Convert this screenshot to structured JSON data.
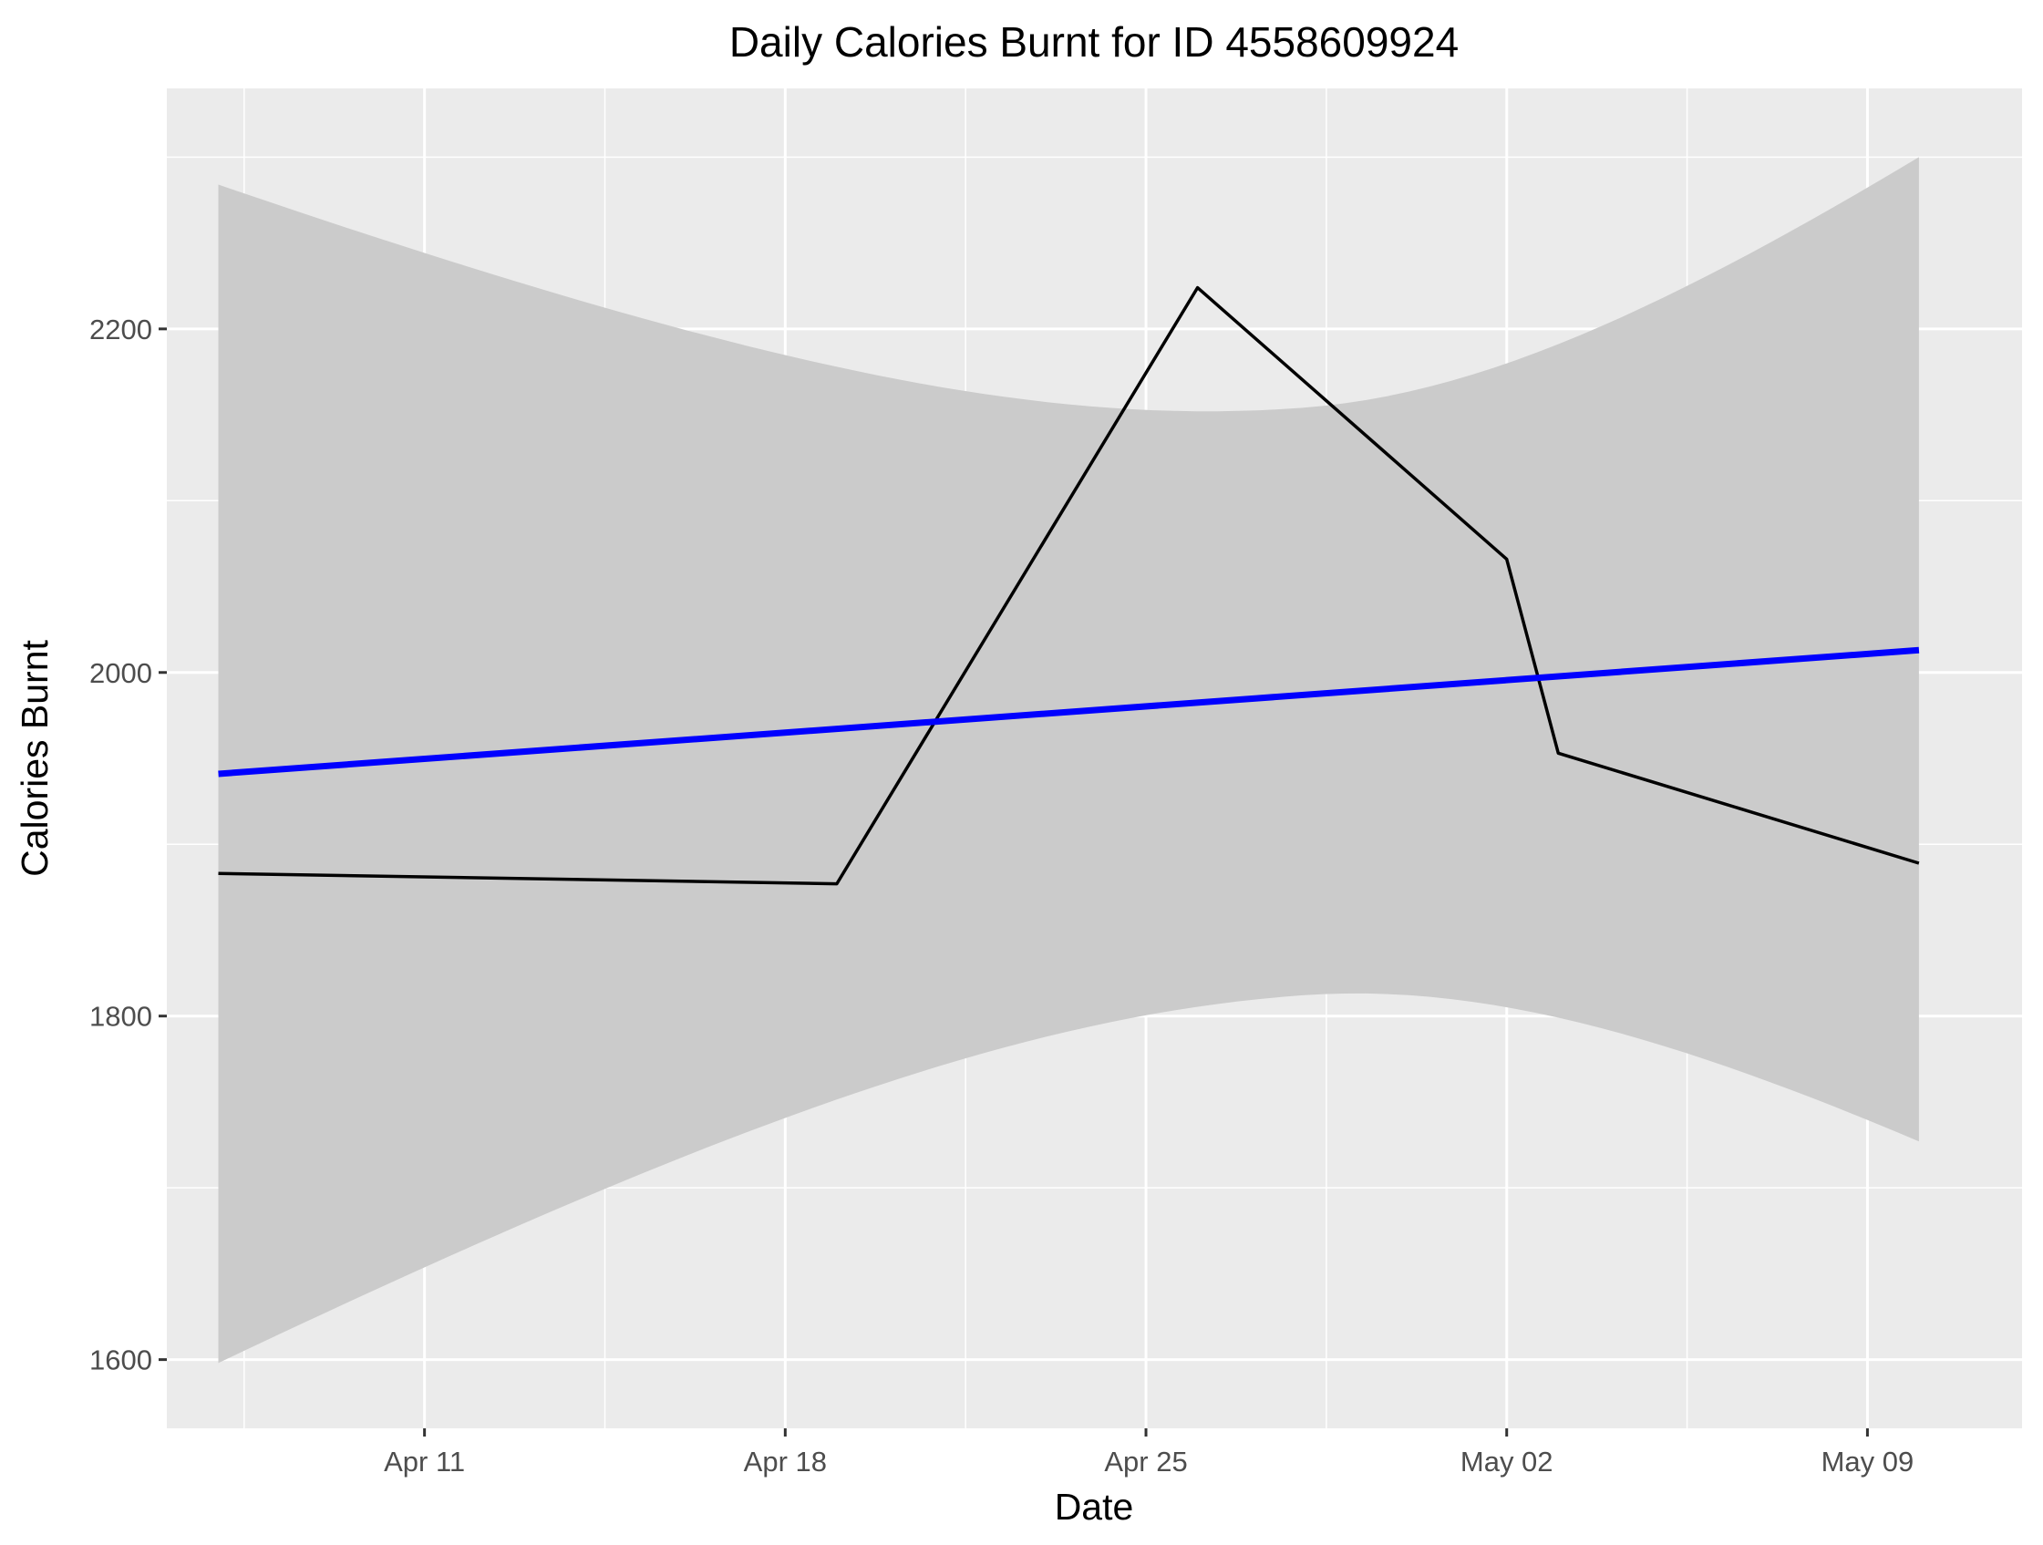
{
  "chart_data": {
    "type": "line",
    "title": "Daily Calories Burnt for ID 4558609924",
    "xlabel": "Date",
    "ylabel": "Calories Burnt",
    "x_axis_type": "date",
    "xlim": [
      "2016-04-06",
      "2016-05-12"
    ],
    "ylim": [
      1560,
      2340
    ],
    "x_ticks": [
      {
        "date": "2016-04-11",
        "label": "Apr 11"
      },
      {
        "date": "2016-04-18",
        "label": "Apr 18"
      },
      {
        "date": "2016-04-25",
        "label": "Apr 25"
      },
      {
        "date": "2016-05-02",
        "label": "May 02"
      },
      {
        "date": "2016-05-09",
        "label": "May 09"
      }
    ],
    "y_ticks": [
      1600,
      1800,
      2000,
      2200
    ],
    "grid": true,
    "legend": "none",
    "series": [
      {
        "type": "line",
        "color": "#000000",
        "points": [
          {
            "x": "2016-04-07",
            "y": 1883
          },
          {
            "x": "2016-04-19",
            "y": 1877
          },
          {
            "x": "2016-04-26",
            "y": 2224
          },
          {
            "x": "2016-05-02",
            "y": 2066
          },
          {
            "x": "2016-05-03",
            "y": 1953
          },
          {
            "x": "2016-05-10",
            "y": 1889
          }
        ]
      },
      {
        "type": "smooth",
        "method": "linear",
        "color": "#0000ff",
        "fill_color": "#cbcbcb",
        "x_start": "2016-04-07",
        "x_end": "2016-05-10",
        "band_center": "2016-04-28",
        "fit_start": 1941,
        "fit_end": 2013,
        "band_lower": [
          {
            "x": "2016-04-07",
            "y": 1598
          },
          {
            "x": "2016-04-28",
            "y": 1812
          },
          {
            "x": "2016-05-10",
            "y": 1727
          }
        ],
        "band_upper": [
          {
            "x": "2016-04-07",
            "y": 2284
          },
          {
            "x": "2016-04-28",
            "y": 2154
          },
          {
            "x": "2016-05-10",
            "y": 2300
          }
        ]
      }
    ]
  }
}
